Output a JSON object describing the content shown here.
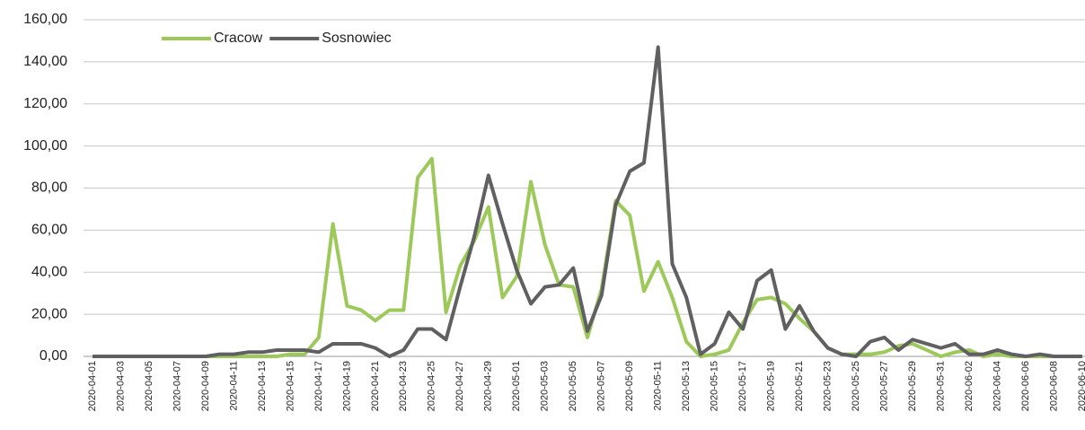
{
  "chart_data": {
    "type": "line",
    "categories": [
      "2020-04-01",
      null,
      "2020-04-03",
      null,
      "2020-04-05",
      null,
      "2020-04-07",
      null,
      "2020-04-09",
      null,
      "2020-04-11",
      null,
      "2020-04-13",
      null,
      "2020-04-15",
      null,
      "2020-04-17",
      null,
      "2020-04-19",
      null,
      "2020-04-21",
      null,
      "2020-04-23",
      null,
      "2020-04-25",
      null,
      "2020-04-27",
      null,
      "2020-04-29",
      null,
      "2020-05-01",
      null,
      "2020-05-03",
      null,
      "2020-05-05",
      null,
      "2020-05-07",
      null,
      "2020-05-09",
      null,
      "2020-05-11",
      null,
      "2020-05-13",
      null,
      "2020-05-15",
      null,
      "2020-05-17",
      null,
      "2020-05-19",
      null,
      "2020-05-21",
      null,
      "2020-05-23",
      null,
      "2020-05-25",
      null,
      "2020-05-27",
      null,
      "2020-05-29",
      null,
      "2020-05-31",
      null,
      "2020-06-02",
      null,
      "2020-06-04",
      null,
      "2020-06-06",
      null,
      "2020-06-08",
      null,
      "2020-06-10"
    ],
    "series": [
      {
        "name": "Cracow",
        "color": "#9dc95a",
        "values": [
          0,
          0,
          0,
          0,
          0,
          0,
          0,
          0,
          0,
          0,
          0,
          0,
          0,
          0,
          1,
          1,
          9,
          63,
          24,
          22,
          17,
          22,
          22,
          85,
          94,
          21,
          43,
          55,
          71,
          28,
          38,
          83,
          53,
          34,
          33,
          9,
          32,
          74,
          67,
          31,
          45,
          28,
          7,
          0,
          1,
          3,
          16,
          27,
          28,
          25,
          18,
          12,
          4,
          1,
          1,
          1,
          2,
          5,
          6,
          3,
          0,
          2,
          3,
          0,
          1,
          0,
          0,
          0,
          0,
          0,
          0
        ]
      },
      {
        "name": "Sosnowiec",
        "color": "#606062",
        "values": [
          0,
          0,
          0,
          0,
          0,
          0,
          0,
          0,
          0,
          1,
          1,
          2,
          2,
          3,
          3,
          3,
          2,
          6,
          6,
          6,
          4,
          0,
          3,
          13,
          13,
          8,
          33,
          57,
          86,
          63,
          41,
          25,
          33,
          34,
          42,
          12,
          29,
          72,
          88,
          92,
          147,
          44,
          28,
          1,
          6,
          21,
          13,
          36,
          41,
          13,
          24,
          12,
          4,
          1,
          0,
          7,
          9,
          3,
          8,
          6,
          4,
          6,
          1,
          1,
          3,
          1,
          0,
          1,
          0,
          0,
          0
        ]
      }
    ],
    "ylim": [
      0,
      160
    ],
    "yticks": [
      {
        "value": 0,
        "label": "0,00"
      },
      {
        "value": 20,
        "label": "20,00"
      },
      {
        "value": 40,
        "label": "40,00"
      },
      {
        "value": 60,
        "label": "60,00"
      },
      {
        "value": 80,
        "label": "80,00"
      },
      {
        "value": 100,
        "label": "100,00"
      },
      {
        "value": 120,
        "label": "120,00"
      },
      {
        "value": 140,
        "label": "140,00"
      },
      {
        "value": 160,
        "label": "160,00"
      }
    ],
    "grid": true,
    "legend": "top-left"
  }
}
